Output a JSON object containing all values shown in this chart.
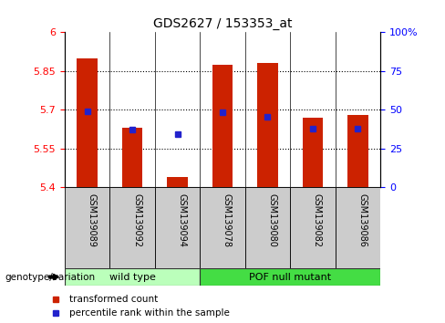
{
  "title": "GDS2627 / 153353_at",
  "samples": [
    "GSM139089",
    "GSM139092",
    "GSM139094",
    "GSM139078",
    "GSM139080",
    "GSM139082",
    "GSM139086"
  ],
  "red_values": [
    5.9,
    5.63,
    5.44,
    5.875,
    5.88,
    5.67,
    5.68
  ],
  "blue_values": [
    5.695,
    5.625,
    5.605,
    5.69,
    5.673,
    5.627,
    5.628
  ],
  "ymin": 5.4,
  "ymax": 6.0,
  "yticks": [
    5.4,
    5.55,
    5.7,
    5.85,
    6.0
  ],
  "ytick_labels": [
    "5.4",
    "5.55",
    "5.7",
    "5.85",
    "6"
  ],
  "right_yticks": [
    0,
    25,
    50,
    75,
    100
  ],
  "right_ytick_labels": [
    "0",
    "25",
    "50",
    "75",
    "100%"
  ],
  "dotted_lines": [
    5.55,
    5.7,
    5.85
  ],
  "n_wild_type": 3,
  "n_mutant": 4,
  "wild_type_label": "wild type",
  "mutant_label": "POF null mutant",
  "genotype_label": "genotype/variation",
  "legend_red": "transformed count",
  "legend_blue": "percentile rank within the sample",
  "bar_color": "#CC2200",
  "blue_color": "#2222CC",
  "wild_type_color": "#BBFFBB",
  "mutant_color": "#44DD44",
  "gray_color": "#CCCCCC",
  "bar_width": 0.45
}
